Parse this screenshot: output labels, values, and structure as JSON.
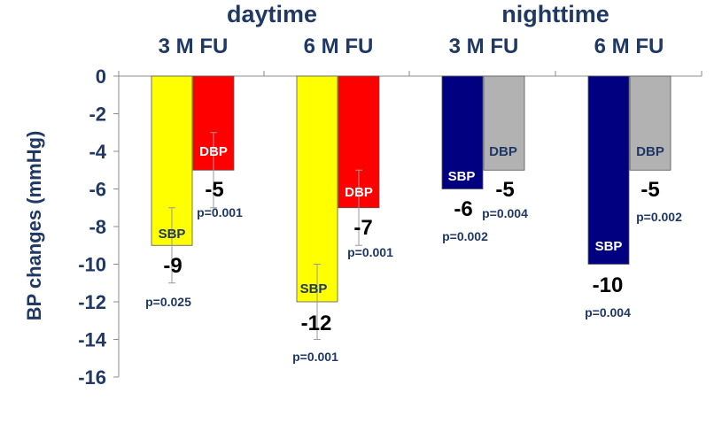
{
  "chart_data": {
    "type": "bar",
    "ylabel": "BP changes (mmHg)",
    "ylim": [
      -16,
      0
    ],
    "yticks": [
      0,
      -2,
      -4,
      -6,
      -8,
      -10,
      -12,
      -14,
      -16
    ],
    "grid": false,
    "groups": [
      {
        "label": "daytime",
        "subgroups": [
          "3 M FU",
          "6 M FU"
        ]
      },
      {
        "label": "nighttime",
        "subgroups": [
          "3 M FU",
          "6 M FU"
        ]
      }
    ],
    "categories": [
      "daytime 3 M FU",
      "daytime 6 M FU",
      "nighttime 3 M FU",
      "nighttime 6 M FU"
    ],
    "series": [
      {
        "name": "SBP",
        "values": [
          -9,
          -12,
          -6,
          -10
        ],
        "colors": [
          "#ffff00",
          "#ffff00",
          "#000080",
          "#000080"
        ],
        "error_low": [
          -11,
          -14,
          null,
          null
        ],
        "error_high": [
          -7,
          -10,
          null,
          null
        ],
        "value_labels": [
          "-9",
          "-12",
          "-6",
          "-10"
        ],
        "p_values": [
          "p=0.025",
          "p=0.001",
          "p=0.002",
          "p=0.004"
        ]
      },
      {
        "name": "DBP",
        "values": [
          -5,
          -7,
          -5,
          -5
        ],
        "colors": [
          "#ff0000",
          "#ff0000",
          "#b2b2b2",
          "#b2b2b2"
        ],
        "error_low": [
          -7,
          -9,
          null,
          null
        ],
        "error_high": [
          -3,
          -5,
          null,
          null
        ],
        "value_labels": [
          "-5",
          "-7",
          "-5",
          "-5"
        ],
        "p_values": [
          "p=0.001",
          "p=0.001",
          "p=0.004",
          "p=0.002"
        ]
      }
    ]
  }
}
